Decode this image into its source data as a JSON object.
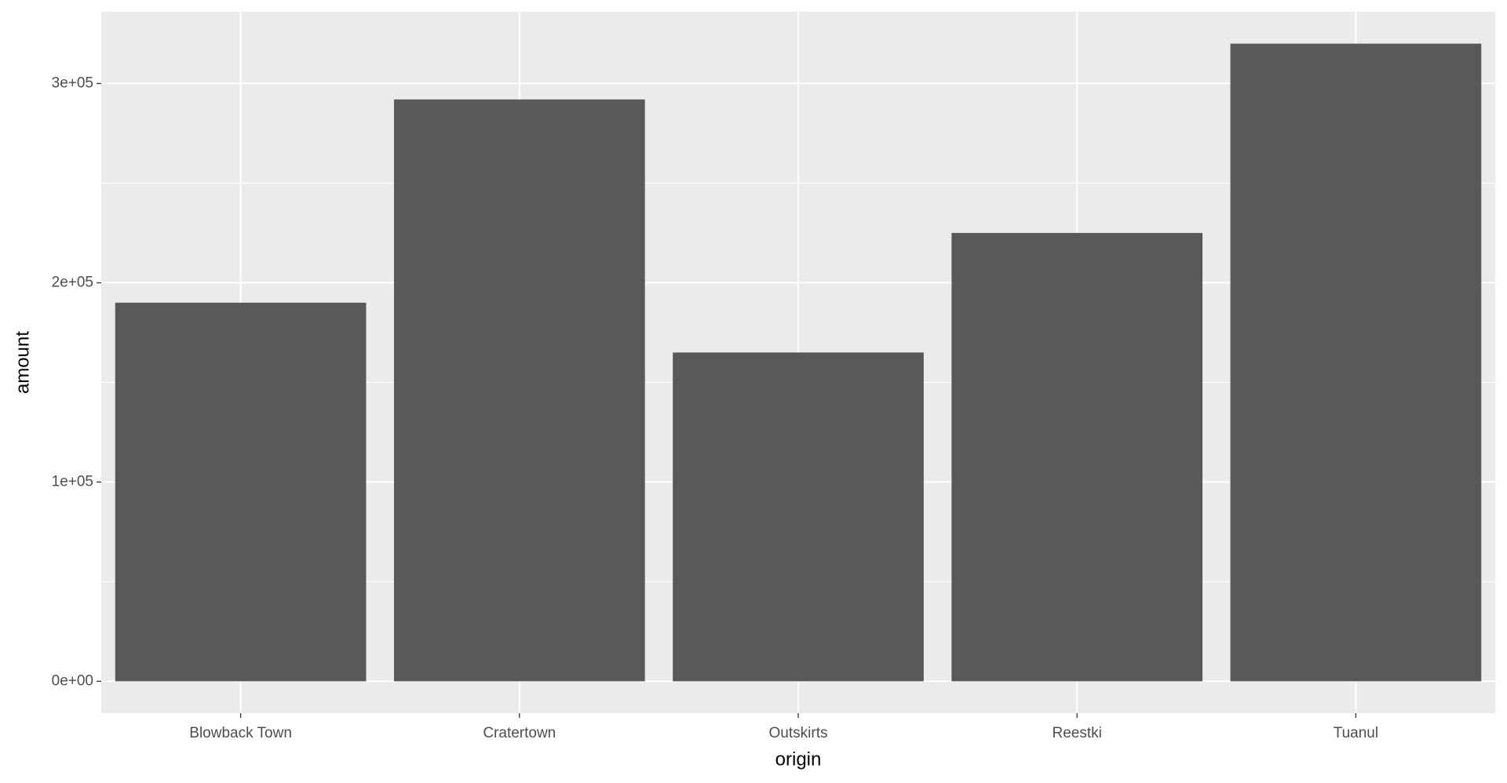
{
  "chart_data": {
    "type": "bar",
    "x_label": "origin",
    "y_label": "amount",
    "categories": [
      "Blowback Town",
      "Cratertown",
      "Outskirts",
      "Reestki",
      "Tuanul"
    ],
    "values": [
      190000,
      292000,
      165000,
      225000,
      320000
    ],
    "color": "#595959",
    "ylim": [
      -16000,
      336000
    ],
    "yticks": [
      {
        "value": 0,
        "label": "0e+00"
      },
      {
        "value": 100000,
        "label": "1e+05"
      },
      {
        "value": 200000,
        "label": "2e+05"
      },
      {
        "value": 300000,
        "label": "3e+05"
      }
    ],
    "y_minor_ticks": [
      50000,
      150000,
      250000
    ],
    "grid": true
  }
}
